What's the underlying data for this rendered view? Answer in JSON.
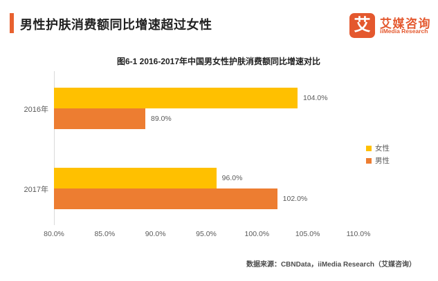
{
  "header": {
    "title": "男性护肤消费额同比增速超过女性"
  },
  "logo": {
    "glyph": "艾",
    "brand": "艾媒咨询",
    "sub_brand": "iiMedia Research"
  },
  "chart_data": {
    "type": "bar",
    "orientation": "horizontal",
    "title": "图6-1 2016-2017年中国男女性护肤消费额同比增速对比",
    "categories": [
      "2016年",
      "2017年"
    ],
    "series": [
      {
        "name": "女性",
        "color": "#FFC000",
        "values": [
          104.0,
          96.0
        ]
      },
      {
        "name": "男性",
        "color": "#ED7D31",
        "values": [
          89.0,
          102.0
        ]
      }
    ],
    "xlim": [
      80,
      110
    ],
    "x_ticks": [
      "80.0%",
      "85.0%",
      "90.0%",
      "95.0%",
      "100.0%",
      "105.0%",
      "110.0%"
    ],
    "value_label_format": "percent_one_decimal",
    "legend_position": "right-middle",
    "grid": "off"
  },
  "footer": {
    "source": "数据来源：CBNData，iiMedia Research（艾媒咨询）"
  },
  "colors": {
    "accent_orange": "#E8612F",
    "logo_orange": "#E4582E",
    "female_yellow": "#FFC000",
    "male_orange": "#ED7D31",
    "axis_gray": "#D9D9D9",
    "label_gray": "#595959"
  }
}
